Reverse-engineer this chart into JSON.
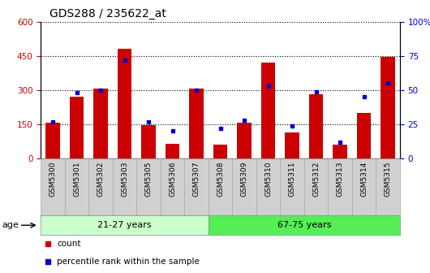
{
  "title": "GDS288 / 235622_at",
  "samples": [
    "GSM5300",
    "GSM5301",
    "GSM5302",
    "GSM5303",
    "GSM5305",
    "GSM5306",
    "GSM5307",
    "GSM5308",
    "GSM5309",
    "GSM5310",
    "GSM5311",
    "GSM5312",
    "GSM5313",
    "GSM5314",
    "GSM5315"
  ],
  "counts": [
    155,
    270,
    305,
    480,
    147,
    65,
    305,
    60,
    155,
    420,
    115,
    280,
    60,
    200,
    445
  ],
  "percentiles": [
    27,
    48,
    50,
    72,
    27,
    20,
    50,
    22,
    28,
    53,
    24,
    49,
    12,
    45,
    55
  ],
  "group1_label": "21-27 years",
  "group2_label": "67-75 years",
  "group1_count": 7,
  "group2_count": 8,
  "bar_color": "#cc0000",
  "dot_color": "#0000cc",
  "group1_bg": "#ccffcc",
  "group2_bg": "#55ee55",
  "ylim_left": [
    0,
    600
  ],
  "ylim_right": [
    0,
    100
  ],
  "yticks_left": [
    0,
    150,
    300,
    450,
    600
  ],
  "yticks_right": [
    0,
    25,
    50,
    75,
    100
  ],
  "title_fontsize": 10,
  "age_label": "age",
  "legend_count_label": "count",
  "legend_pct_label": "percentile rank within the sample",
  "bar_width": 0.6
}
